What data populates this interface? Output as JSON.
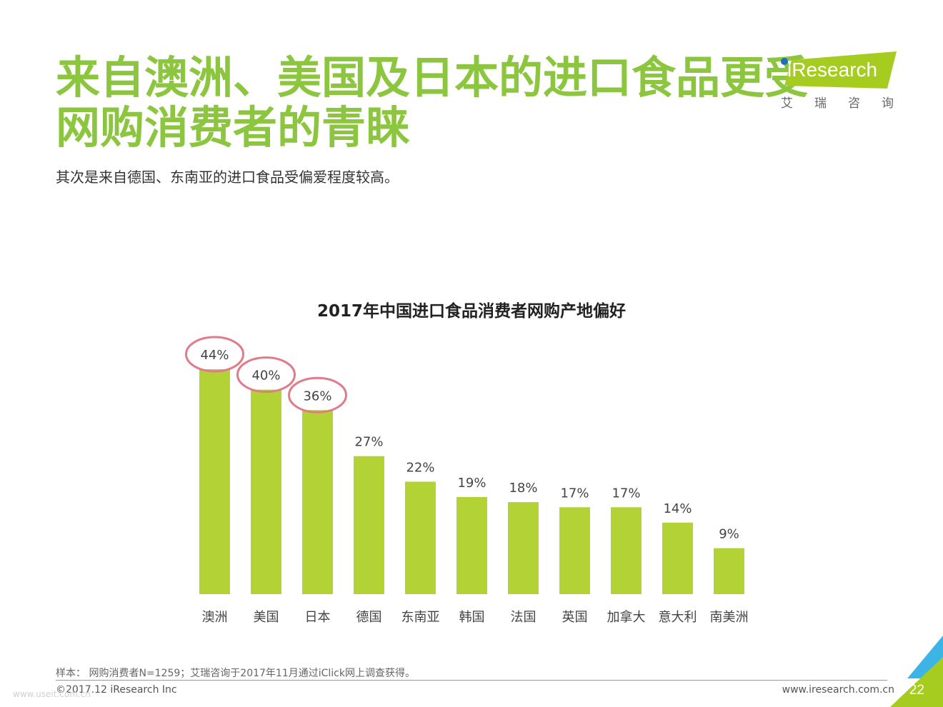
{
  "header": {
    "title_line1": "来自澳洲、美国及日本的进口食品更受",
    "title_line2": "网购消费者的青睐",
    "subtitle": "其次是来自德国、东南亚的进口食品受偏爱程度较高。"
  },
  "logo": {
    "wordmark": "iResearch",
    "chinese": "艾瑞咨询",
    "color": "#a5cc1e"
  },
  "colors": {
    "accent": "#8cc63f",
    "bar": "#b2d235",
    "highlight_circle": "#e07b89",
    "corner_blue": "#3cb4e5",
    "corner_green": "#a5cc1e"
  },
  "chart_data": {
    "type": "bar",
    "title": "2017年中国进口食品消费者网购产地偏好",
    "categories": [
      "澳洲",
      "美国",
      "日本",
      "德国",
      "东南亚",
      "韩国",
      "法国",
      "英国",
      "加拿大",
      "意大利",
      "南美洲"
    ],
    "values": [
      44,
      40,
      36,
      27,
      22,
      19,
      18,
      17,
      17,
      14,
      9
    ],
    "labels": [
      "44%",
      "40%",
      "36%",
      "27%",
      "22%",
      "19%",
      "18%",
      "17%",
      "17%",
      "14%",
      "9%"
    ],
    "highlighted": [
      "澳洲",
      "美国",
      "日本"
    ],
    "unit": "%",
    "ylim": [
      0,
      44
    ],
    "grid": false
  },
  "footer": {
    "note": "样本： 网购消费者N=1259；艾瑞咨询于2017年11月通过iClick网上调查获得。",
    "copyright": "©2017.12 iResearch Inc",
    "website": "www.iresearch.com.cn",
    "page_number": "22",
    "watermark": "www.useit.com.cn"
  }
}
